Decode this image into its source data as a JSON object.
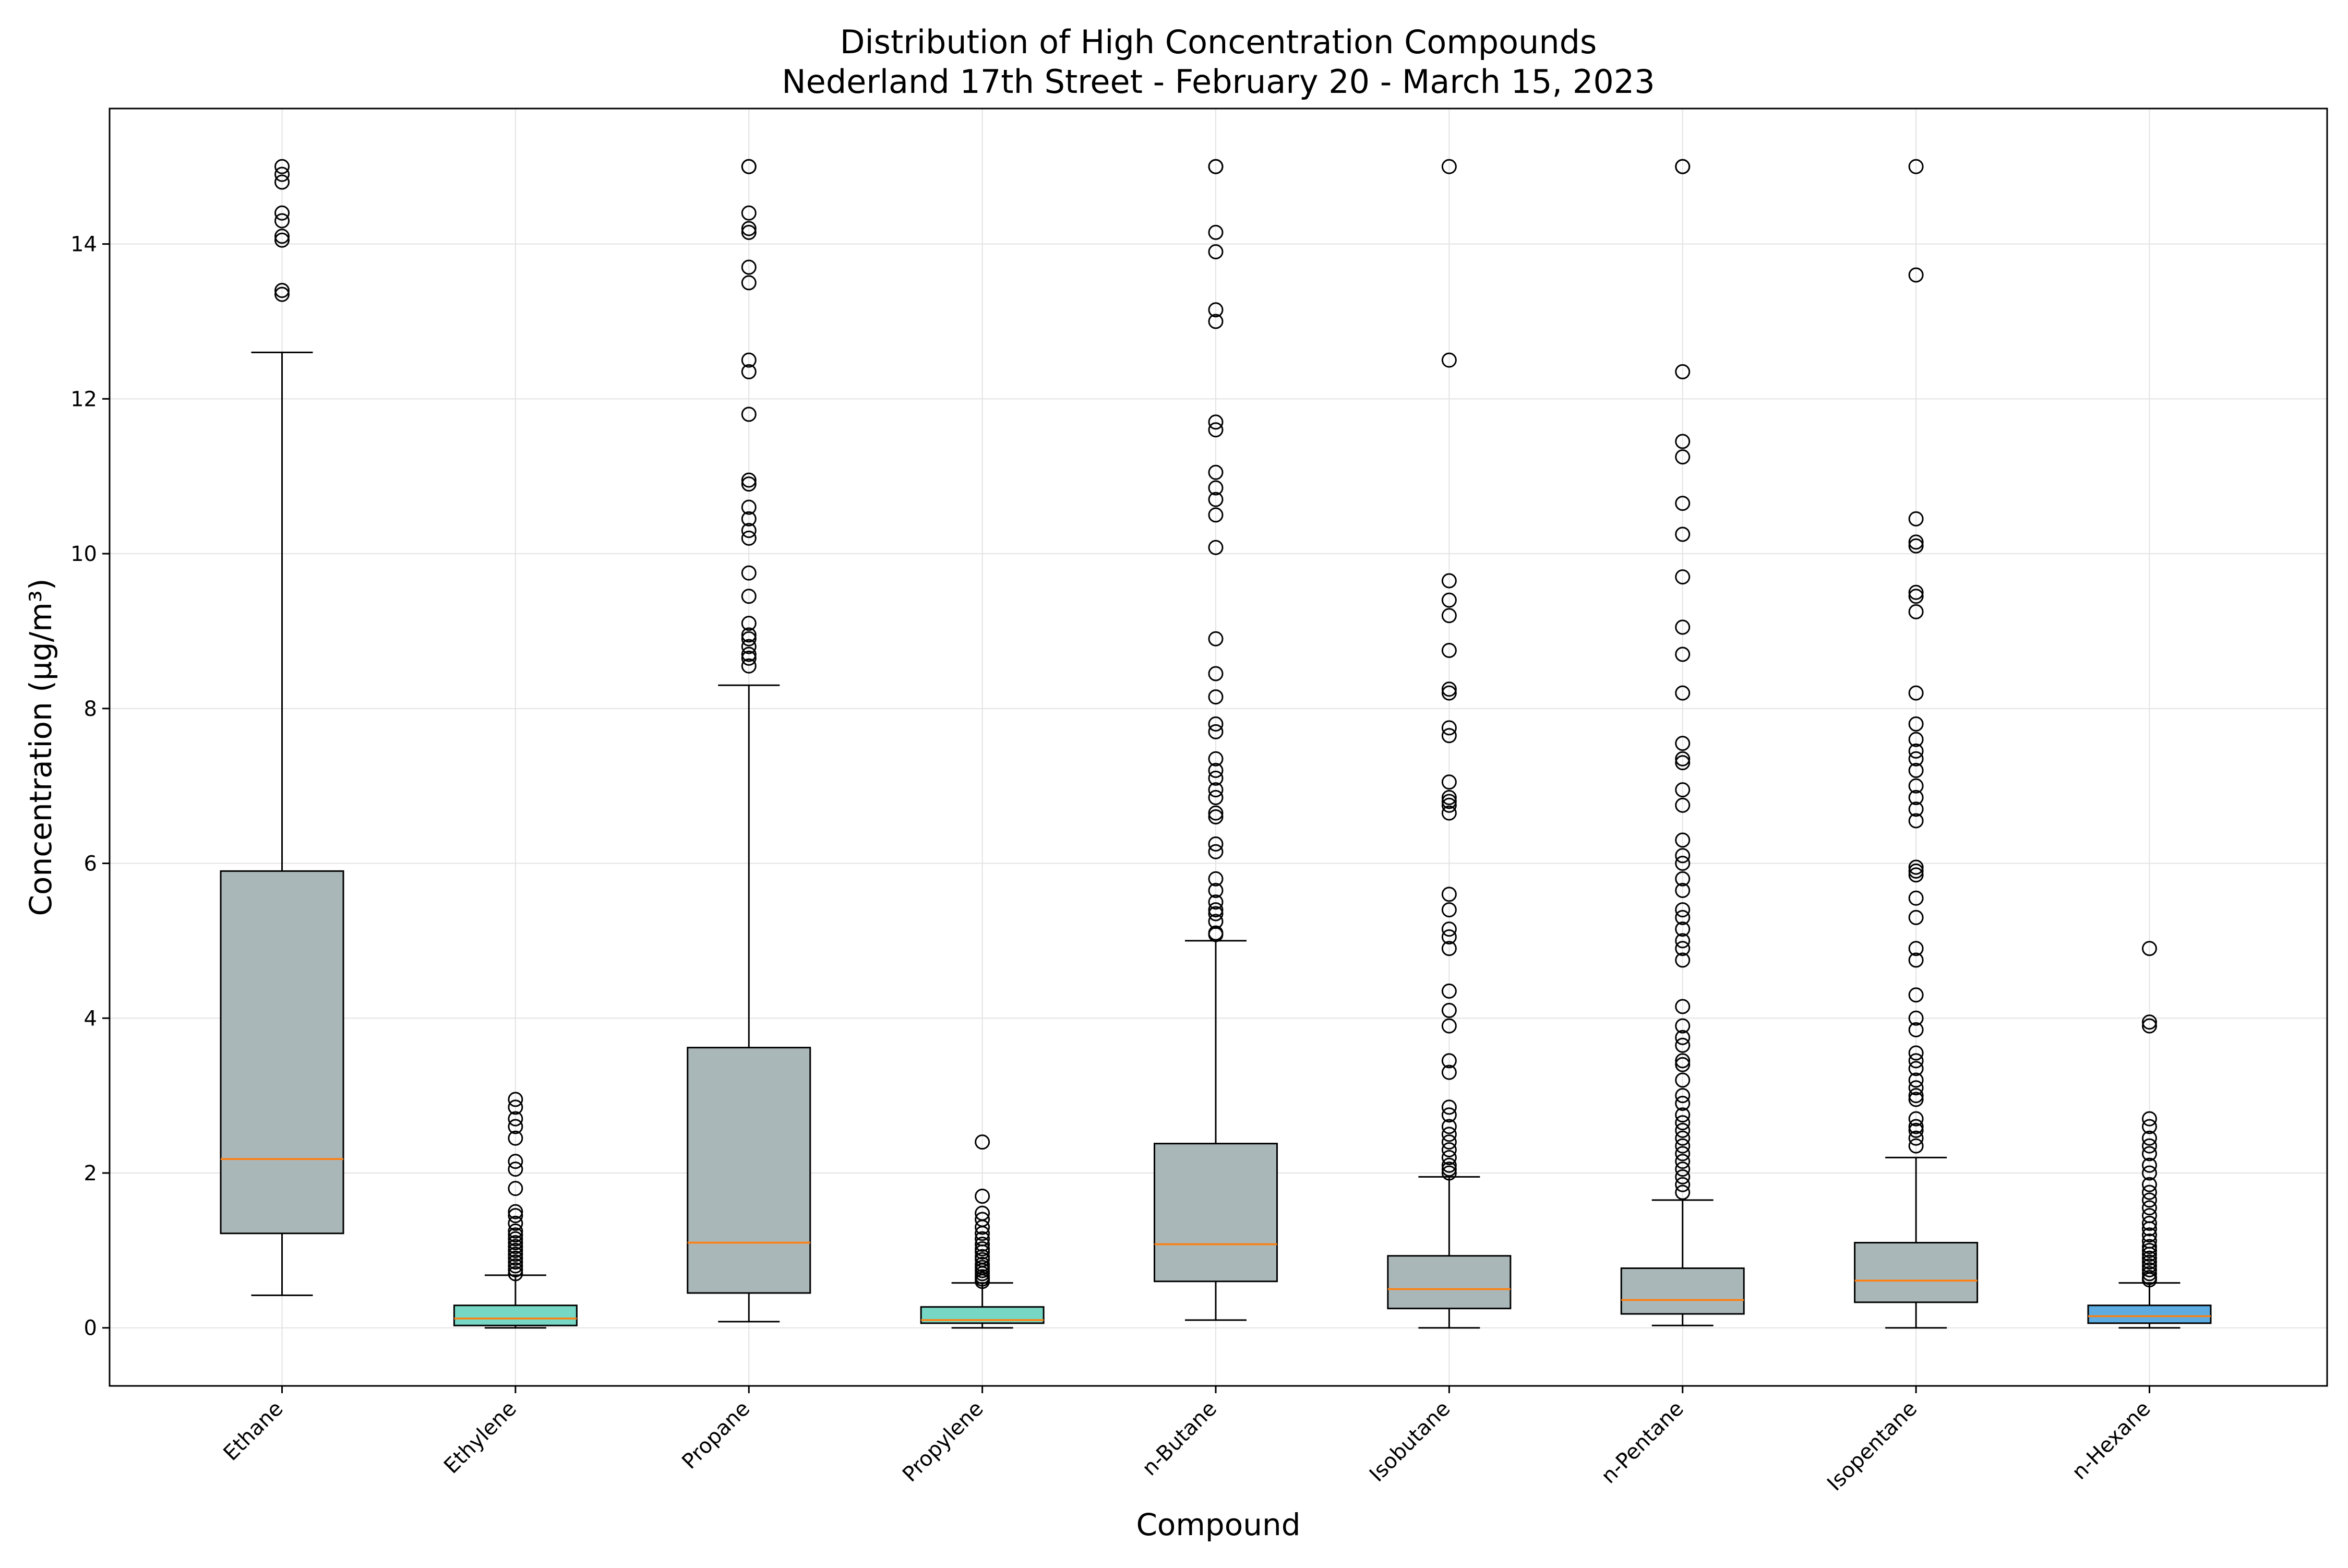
{
  "chart_data": {
    "type": "box",
    "title": "Distribution of High Concentration Compounds",
    "subtitle": "Nederland 17th Street - February 20 - March 15, 2023",
    "xlabel": "Compound",
    "ylabel": "Concentration (µg/m³)",
    "ylim": [
      -0.75,
      15.75
    ],
    "yticks": [
      0,
      2,
      4,
      6,
      8,
      10,
      12,
      14
    ],
    "grid": true,
    "colors": {
      "box_gray": "#aab7b8",
      "box_teal": "#76d7c4",
      "box_blue": "#5dade2",
      "median": "#ff7f0e",
      "edge": "#000000"
    },
    "categories": [
      "Ethane",
      "Ethylene",
      "Propane",
      "Propylene",
      "n-Butane",
      "Isobutane",
      "n-Pentane",
      "Isopentane",
      "n-Hexane"
    ],
    "boxes": [
      {
        "name": "Ethane",
        "color": "#aab7b8",
        "whisker_low": 0.42,
        "q1": 1.22,
        "median": 2.18,
        "q3": 5.9,
        "whisker_high": 12.6,
        "outliers": [
          15.0,
          14.9,
          14.8,
          14.4,
          14.3,
          14.1,
          14.05,
          13.4,
          13.35
        ]
      },
      {
        "name": "Ethylene",
        "color": "#76d7c4",
        "whisker_low": 0.0,
        "q1": 0.03,
        "median": 0.12,
        "q3": 0.29,
        "whisker_high": 0.68,
        "outliers": [
          2.95,
          2.85,
          2.7,
          2.6,
          2.45,
          2.15,
          2.05,
          1.8,
          1.5,
          1.45,
          1.35,
          1.25,
          1.2,
          1.15,
          1.1,
          1.05,
          1.0,
          0.95,
          0.9,
          0.85,
          0.8,
          0.75,
          0.7
        ]
      },
      {
        "name": "Propane",
        "color": "#aab7b8",
        "whisker_low": 0.08,
        "q1": 0.45,
        "median": 1.1,
        "q3": 3.62,
        "whisker_high": 8.3,
        "outliers": [
          15.0,
          15.0,
          14.4,
          14.2,
          14.15,
          13.7,
          13.5,
          12.5,
          12.35,
          11.8,
          10.95,
          10.9,
          10.6,
          10.45,
          10.3,
          10.2,
          9.75,
          9.45,
          9.1,
          8.95,
          8.9,
          8.8,
          8.7,
          8.65,
          8.55
        ]
      },
      {
        "name": "Propylene",
        "color": "#76d7c4",
        "whisker_low": 0.0,
        "q1": 0.06,
        "median": 0.1,
        "q3": 0.27,
        "whisker_high": 0.58,
        "outliers": [
          2.4,
          1.7,
          1.48,
          1.4,
          1.3,
          1.22,
          1.15,
          1.08,
          1.02,
          0.98,
          0.92,
          0.88,
          0.82,
          0.78,
          0.74,
          0.7,
          0.66,
          0.63,
          0.6
        ]
      },
      {
        "name": "n-Butane",
        "color": "#aab7b8",
        "whisker_low": 0.1,
        "q1": 0.6,
        "median": 1.08,
        "q3": 2.38,
        "whisker_high": 5.0,
        "outliers": [
          15.0,
          15.0,
          14.15,
          13.9,
          13.15,
          13.0,
          11.7,
          11.6,
          11.05,
          10.85,
          10.7,
          10.5,
          10.08,
          8.9,
          8.45,
          8.15,
          7.8,
          7.7,
          7.35,
          7.2,
          7.1,
          6.95,
          6.85,
          6.65,
          6.6,
          6.25,
          6.15,
          5.8,
          5.65,
          5.5,
          5.4,
          5.35,
          5.25,
          5.1,
          5.08
        ]
      },
      {
        "name": "Isobutane",
        "color": "#aab7b8",
        "whisker_low": 0.0,
        "q1": 0.25,
        "median": 0.5,
        "q3": 0.93,
        "whisker_high": 1.95,
        "outliers": [
          15.0,
          12.5,
          9.65,
          9.4,
          9.2,
          8.75,
          8.25,
          8.2,
          7.75,
          7.65,
          7.05,
          6.85,
          6.8,
          6.75,
          6.65,
          5.6,
          5.4,
          5.15,
          5.05,
          4.9,
          4.35,
          4.1,
          3.9,
          3.45,
          3.3,
          2.85,
          2.75,
          2.6,
          2.5,
          2.4,
          2.3,
          2.2,
          2.1,
          2.05,
          2.0
        ]
      },
      {
        "name": "n-Pentane",
        "color": "#aab7b8",
        "whisker_low": 0.03,
        "q1": 0.18,
        "median": 0.36,
        "q3": 0.77,
        "whisker_high": 1.65,
        "outliers": [
          15.0,
          15.0,
          12.35,
          11.45,
          11.25,
          10.65,
          10.25,
          9.7,
          9.05,
          8.7,
          8.2,
          7.55,
          7.35,
          7.3,
          6.95,
          6.75,
          6.3,
          6.1,
          6.0,
          5.8,
          5.65,
          5.4,
          5.3,
          5.15,
          5.0,
          4.9,
          4.75,
          4.15,
          3.9,
          3.75,
          3.65,
          3.45,
          3.4,
          3.2,
          3.0,
          2.9,
          2.75,
          2.65,
          2.55,
          2.45,
          2.35,
          2.25,
          2.15,
          2.05,
          1.95,
          1.85,
          1.75
        ]
      },
      {
        "name": "Isopentane",
        "color": "#aab7b8",
        "whisker_low": 0.0,
        "q1": 0.33,
        "median": 0.61,
        "q3": 1.1,
        "whisker_high": 2.2,
        "outliers": [
          15.0,
          13.6,
          10.45,
          10.15,
          10.1,
          9.5,
          9.45,
          9.25,
          8.2,
          7.8,
          7.6,
          7.45,
          7.35,
          7.2,
          7.0,
          6.85,
          6.7,
          6.55,
          5.95,
          5.9,
          5.85,
          5.55,
          5.3,
          4.9,
          4.75,
          4.3,
          4.0,
          3.85,
          3.55,
          3.45,
          3.35,
          3.2,
          3.1,
          3.0,
          2.95,
          2.7,
          2.6,
          2.55,
          2.45,
          2.35
        ]
      },
      {
        "name": "n-Hexane",
        "color": "#5dade2",
        "whisker_low": 0.0,
        "q1": 0.06,
        "median": 0.15,
        "q3": 0.29,
        "whisker_high": 0.58,
        "outliers": [
          4.9,
          3.95,
          3.9,
          2.7,
          2.6,
          2.45,
          2.35,
          2.25,
          2.1,
          2.0,
          1.85,
          1.75,
          1.65,
          1.55,
          1.45,
          1.35,
          1.28,
          1.2,
          1.12,
          1.05,
          1.0,
          0.95,
          0.9,
          0.85,
          0.8,
          0.75,
          0.7,
          0.65,
          0.62
        ]
      }
    ]
  }
}
